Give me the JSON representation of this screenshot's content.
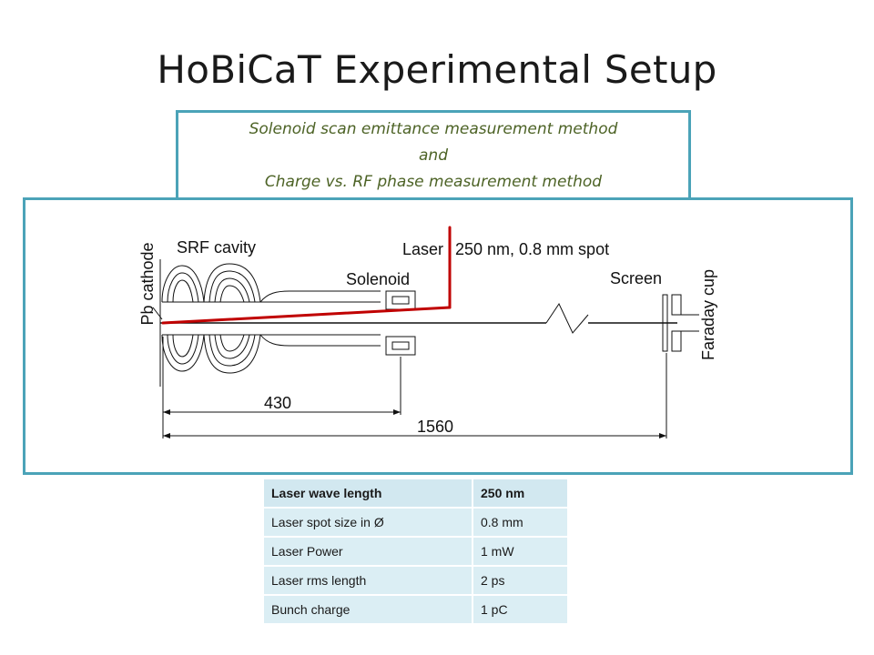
{
  "slide": {
    "title": "HoBiCaT Experimental Setup",
    "subtitle_lines": [
      "Solenoid scan emittance measurement method",
      "and",
      "Charge vs. RF phase measurement method"
    ]
  },
  "diagram": {
    "labels": {
      "cathode": "Pb cathode",
      "cavity": "SRF cavity",
      "laser": "Laser",
      "laser_spec": "250 nm, 0.8 mm spot",
      "solenoid": "Solenoid",
      "screen": "Screen",
      "faraday": "Faraday cup",
      "dim_short": "430",
      "dim_long": "1560"
    },
    "colors": {
      "laser": "#c00000",
      "frame": "#4ba3b8",
      "subtitle_text": "#4d6326"
    }
  },
  "table": {
    "rows": [
      {
        "param": "Laser wave length",
        "value": "250 nm"
      },
      {
        "param": "Laser spot size in Ø",
        "value": "0.8 mm"
      },
      {
        "param": "Laser Power",
        "value": "1 mW"
      },
      {
        "param": "Laser rms length",
        "value": "2 ps"
      },
      {
        "param": "Bunch charge",
        "value": "1 pC"
      }
    ]
  }
}
